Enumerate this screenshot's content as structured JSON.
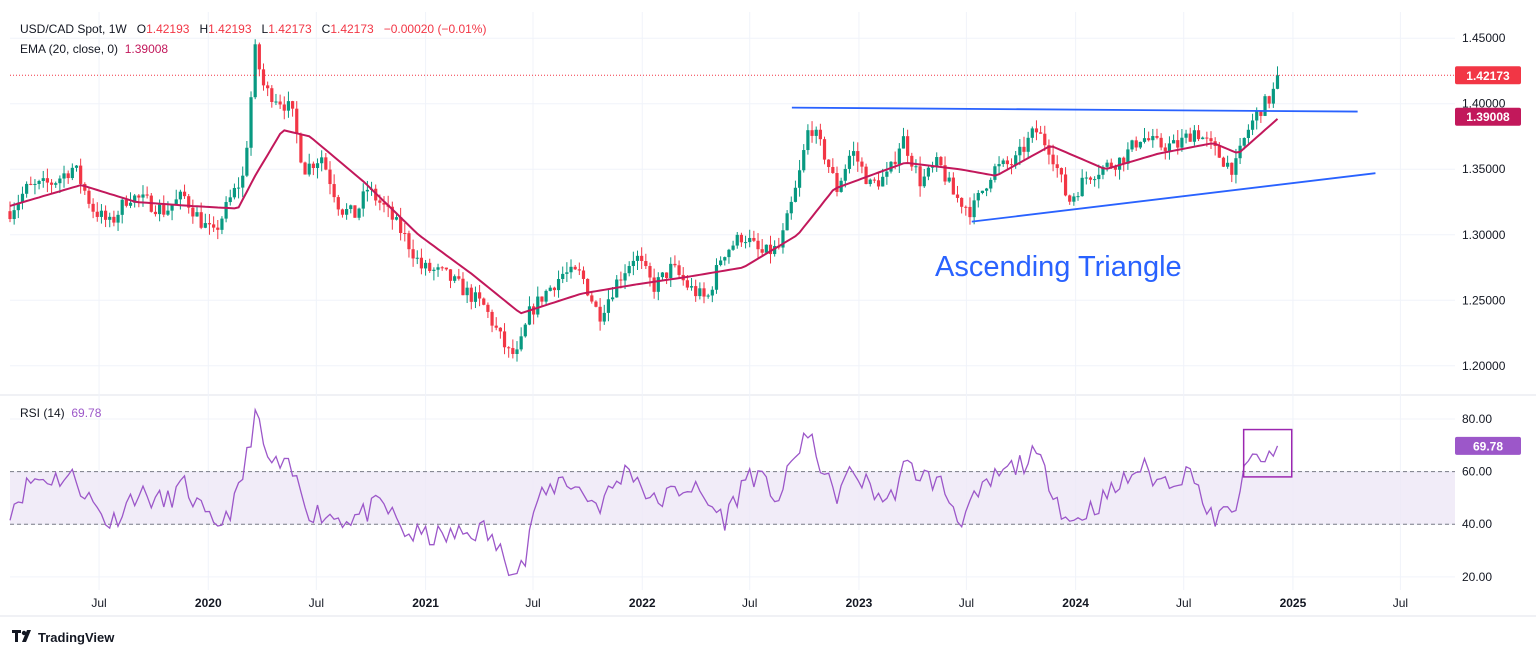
{
  "legend": {
    "symbol": "USD/CAD Spot, 1W",
    "o_label": "O",
    "o": "1.42193",
    "h_label": "H",
    "h": "1.42193",
    "l_label": "L",
    "l": "1.42173",
    "c_label": "C",
    "c": "1.42173",
    "change": "−0.00020 (−0.01%)",
    "ema_label": "EMA (20, close, 0)",
    "ema_value": "1.39008",
    "rsi_label": "RSI (14)",
    "rsi_value": "69.78"
  },
  "annotation": "Ascending Triangle",
  "brand": "TradingView",
  "colors": {
    "up": "#089981",
    "down": "#f23645",
    "ema": "#c2185b",
    "rsi": "#9c57c9",
    "trendline": "#2962ff",
    "rsi_band": "#ede7f6",
    "last_price_tag": "#f23645",
    "ema_tag": "#c2185b",
    "rsi_tag": "#9c57c9",
    "highlight_box": "#9c27b0"
  },
  "chart_data": [
    {
      "type": "candlestick",
      "symbol": "USD/CAD Spot",
      "interval": "1W",
      "ylim": [
        1.18,
        1.47
      ],
      "yticks": [
        "1.20000",
        "1.25000",
        "1.30000",
        "1.35000",
        "1.40000",
        "1.45000"
      ],
      "x_range": [
        "2019-02",
        "2025-10"
      ],
      "xticks": [
        {
          "label": "Jul",
          "date": "2019-07"
        },
        {
          "label": "2020",
          "date": "2020-01"
        },
        {
          "label": "Jul",
          "date": "2020-07"
        },
        {
          "label": "2021",
          "date": "2021-01"
        },
        {
          "label": "Jul",
          "date": "2021-07"
        },
        {
          "label": "2022",
          "date": "2022-01"
        },
        {
          "label": "Jul",
          "date": "2022-07"
        },
        {
          "label": "2023",
          "date": "2023-01"
        },
        {
          "label": "Jul",
          "date": "2023-07"
        },
        {
          "label": "2024",
          "date": "2024-01"
        },
        {
          "label": "Jul",
          "date": "2024-07"
        },
        {
          "label": "2025",
          "date": "2025-01"
        },
        {
          "label": "Jul",
          "date": "2025-07"
        }
      ],
      "anchors": [
        [
          "2019-02-01",
          1.318
        ],
        [
          "2019-03-01",
          1.335
        ],
        [
          "2019-04-15",
          1.34
        ],
        [
          "2019-05-20",
          1.352
        ],
        [
          "2019-06-20",
          1.32
        ],
        [
          "2019-07-20",
          1.308
        ],
        [
          "2019-08-20",
          1.33
        ],
        [
          "2019-09-20",
          1.325
        ],
        [
          "2019-10-20",
          1.318
        ],
        [
          "2019-11-20",
          1.33
        ],
        [
          "2019-12-20",
          1.31
        ],
        [
          "2020-01-10",
          1.3
        ],
        [
          "2020-02-10",
          1.33
        ],
        [
          "2020-03-01",
          1.345
        ],
        [
          "2020-03-20",
          1.44
        ],
        [
          "2020-04-05",
          1.41
        ],
        [
          "2020-04-25",
          1.405
        ],
        [
          "2020-05-20",
          1.395
        ],
        [
          "2020-06-10",
          1.35
        ],
        [
          "2020-07-10",
          1.36
        ],
        [
          "2020-08-10",
          1.32
        ],
        [
          "2020-09-05",
          1.315
        ],
        [
          "2020-09-25",
          1.335
        ],
        [
          "2020-10-25",
          1.32
        ],
        [
          "2020-11-25",
          1.3
        ],
        [
          "2020-12-25",
          1.275
        ],
        [
          "2021-02-01",
          1.27
        ],
        [
          "2021-03-01",
          1.26
        ],
        [
          "2021-04-10",
          1.245
        ],
        [
          "2021-05-20",
          1.21
        ],
        [
          "2021-06-05",
          1.208
        ],
        [
          "2021-06-25",
          1.24
        ],
        [
          "2021-07-20",
          1.255
        ],
        [
          "2021-08-20",
          1.27
        ],
        [
          "2021-09-20",
          1.27
        ],
        [
          "2021-10-20",
          1.238
        ],
        [
          "2021-11-20",
          1.265
        ],
        [
          "2021-12-20",
          1.285
        ],
        [
          "2022-01-20",
          1.26
        ],
        [
          "2022-02-20",
          1.275
        ],
        [
          "2022-03-20",
          1.26
        ],
        [
          "2022-04-20",
          1.25
        ],
        [
          "2022-05-15",
          1.285
        ],
        [
          "2022-06-20",
          1.3
        ],
        [
          "2022-07-20",
          1.285
        ],
        [
          "2022-08-20",
          1.29
        ],
        [
          "2022-09-20",
          1.34
        ],
        [
          "2022-10-10",
          1.385
        ],
        [
          "2022-11-05",
          1.36
        ],
        [
          "2022-11-25",
          1.335
        ],
        [
          "2022-12-20",
          1.365
        ],
        [
          "2023-01-20",
          1.338
        ],
        [
          "2023-02-20",
          1.345
        ],
        [
          "2023-03-15",
          1.375
        ],
        [
          "2023-04-15",
          1.34
        ],
        [
          "2023-05-15",
          1.355
        ],
        [
          "2023-06-10",
          1.33
        ],
        [
          "2023-07-10",
          1.318
        ],
        [
          "2023-08-15",
          1.35
        ],
        [
          "2023-09-20",
          1.355
        ],
        [
          "2023-10-25",
          1.38
        ],
        [
          "2023-11-20",
          1.365
        ],
        [
          "2023-12-20",
          1.325
        ],
        [
          "2024-01-20",
          1.345
        ],
        [
          "2024-02-20",
          1.352
        ],
        [
          "2024-03-20",
          1.358
        ],
        [
          "2024-04-20",
          1.375
        ],
        [
          "2024-05-20",
          1.368
        ],
        [
          "2024-06-20",
          1.368
        ],
        [
          "2024-07-20",
          1.38
        ],
        [
          "2024-08-10",
          1.37
        ],
        [
          "2024-09-10",
          1.355
        ],
        [
          "2024-09-25",
          1.35
        ],
        [
          "2024-10-15",
          1.378
        ],
        [
          "2024-11-05",
          1.395
        ],
        [
          "2024-11-25",
          1.405
        ],
        [
          "2024-12-10",
          1.421
        ]
      ],
      "ema_anchors": [
        [
          "2019-02-01",
          1.322
        ],
        [
          "2019-06-01",
          1.338
        ],
        [
          "2019-09-01",
          1.325
        ],
        [
          "2019-12-01",
          1.322
        ],
        [
          "2020-02-20",
          1.32
        ],
        [
          "2020-03-20",
          1.345
        ],
        [
          "2020-05-05",
          1.38
        ],
        [
          "2020-06-20",
          1.375
        ],
        [
          "2020-09-20",
          1.34
        ],
        [
          "2020-12-20",
          1.3
        ],
        [
          "2021-03-20",
          1.27
        ],
        [
          "2021-06-10",
          1.24
        ],
        [
          "2021-09-20",
          1.255
        ],
        [
          "2021-12-20",
          1.262
        ],
        [
          "2022-03-20",
          1.268
        ],
        [
          "2022-06-20",
          1.275
        ],
        [
          "2022-09-20",
          1.3
        ],
        [
          "2022-11-20",
          1.335
        ],
        [
          "2023-03-20",
          1.355
        ],
        [
          "2023-06-20",
          1.35
        ],
        [
          "2023-08-20",
          1.345
        ],
        [
          "2023-11-20",
          1.368
        ],
        [
          "2024-02-20",
          1.35
        ],
        [
          "2024-05-20",
          1.362
        ],
        [
          "2024-08-20",
          1.37
        ],
        [
          "2024-10-01",
          1.362
        ],
        [
          "2024-12-10",
          1.39
        ]
      ],
      "trendlines": [
        {
          "from": [
            "2022-09-10",
            1.397
          ],
          "to": [
            "2025-04-20",
            1.394
          ]
        },
        {
          "from": [
            "2023-07-10",
            1.31
          ],
          "to": [
            "2025-05-20",
            1.347
          ]
        }
      ],
      "last_price": "1.42173",
      "ema_last": "1.39008"
    },
    {
      "type": "line",
      "name": "RSI (14)",
      "ylim": [
        15,
        88
      ],
      "yticks": [
        "20.00",
        "40.00",
        "60.00",
        "80.00"
      ],
      "band": [
        40,
        60
      ],
      "last_value": "69.78",
      "anchors": [
        [
          "2019-02-01",
          46
        ],
        [
          "2019-03-10",
          57
        ],
        [
          "2019-05-20",
          58
        ],
        [
          "2019-06-20",
          48
        ],
        [
          "2019-07-20",
          40
        ],
        [
          "2019-09-01",
          52
        ],
        [
          "2019-10-20",
          48
        ],
        [
          "2019-11-20",
          55
        ],
        [
          "2020-01-10",
          38
        ],
        [
          "2020-02-15",
          48
        ],
        [
          "2020-03-01",
          60
        ],
        [
          "2020-03-20",
          82
        ],
        [
          "2020-04-10",
          64
        ],
        [
          "2020-05-20",
          60
        ],
        [
          "2020-06-20",
          45
        ],
        [
          "2020-08-20",
          42
        ],
        [
          "2020-09-20",
          44
        ],
        [
          "2020-10-20",
          48
        ],
        [
          "2020-12-01",
          36
        ],
        [
          "2021-02-01",
          35
        ],
        [
          "2021-04-10",
          38
        ],
        [
          "2021-05-20",
          25
        ],
        [
          "2021-06-20",
          26
        ],
        [
          "2021-07-01",
          46
        ],
        [
          "2021-08-20",
          58
        ],
        [
          "2021-10-20",
          47
        ],
        [
          "2021-12-10",
          62
        ],
        [
          "2022-01-20",
          48
        ],
        [
          "2022-03-20",
          55
        ],
        [
          "2022-05-20",
          42
        ],
        [
          "2022-07-01",
          60
        ],
        [
          "2022-08-20",
          50
        ],
        [
          "2022-09-30",
          74
        ],
        [
          "2022-10-20",
          68
        ],
        [
          "2022-11-20",
          50
        ],
        [
          "2022-12-20",
          60
        ],
        [
          "2023-02-20",
          48
        ],
        [
          "2023-03-20",
          62
        ],
        [
          "2023-05-20",
          55
        ],
        [
          "2023-06-20",
          42
        ],
        [
          "2023-08-20",
          58
        ],
        [
          "2023-10-25",
          66
        ],
        [
          "2023-11-20",
          56
        ],
        [
          "2023-12-20",
          40
        ],
        [
          "2024-02-20",
          50
        ],
        [
          "2024-04-20",
          62
        ],
        [
          "2024-05-20",
          56
        ],
        [
          "2024-07-20",
          60
        ],
        [
          "2024-08-10",
          42
        ],
        [
          "2024-09-20",
          44
        ],
        [
          "2024-10-20",
          64
        ],
        [
          "2024-11-10",
          66
        ],
        [
          "2024-11-25",
          63
        ],
        [
          "2024-12-10",
          69.78
        ]
      ],
      "highlight_box": {
        "from": [
          "2024-10-10",
          58
        ],
        "to": [
          "2024-12-30",
          76
        ]
      }
    }
  ]
}
